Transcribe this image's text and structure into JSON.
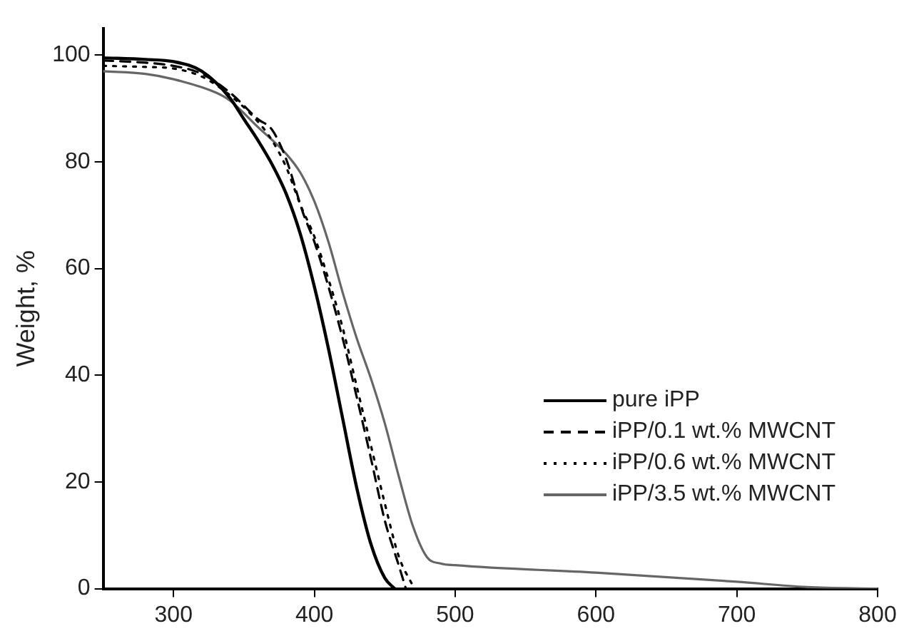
{
  "chart_data": {
    "type": "line",
    "ylabel": "Weight, %",
    "xlim": [
      250,
      800
    ],
    "xticks": [
      300,
      400,
      500,
      600,
      700,
      800
    ],
    "ylim": [
      0,
      105
    ],
    "yticks": [
      0,
      20,
      40,
      60,
      80,
      100
    ],
    "grid": false,
    "legend": "bottom right",
    "marker": "none",
    "series": [
      {
        "name": "pure iPP",
        "color": "#000000",
        "line_style": "solid",
        "x": [
          250,
          280,
          300,
          320,
          340,
          350,
          360,
          370,
          380,
          390,
          400,
          410,
          420,
          430,
          440,
          450,
          457
        ],
        "values": [
          99.5,
          99.2,
          98.8,
          97,
          92,
          88,
          84,
          79.5,
          74,
          66.5,
          56.6,
          45,
          32,
          19,
          8.5,
          2,
          0
        ]
      },
      {
        "name": "iPP/0.1 wt.% MWCNT",
        "color": "#000000",
        "line_style": "dashed",
        "x": [
          250,
          280,
          300,
          320,
          340,
          360,
          370,
          380,
          392,
          400,
          410,
          420,
          430,
          440,
          450,
          460,
          465
        ],
        "values": [
          99,
          98.6,
          98,
          96.5,
          93,
          88,
          86,
          80.5,
          70.4,
          65,
          56.6,
          47,
          36,
          24.6,
          12.8,
          4.3,
          0
        ]
      },
      {
        "name": "iPP/0.6 wt.% MWCNT",
        "color": "#000000",
        "line_style": "dotted",
        "x": [
          250,
          280,
          300,
          320,
          340,
          360,
          370,
          380,
          390,
          400,
          410,
          420,
          430,
          440,
          450,
          460,
          470
        ],
        "values": [
          98,
          97.8,
          97.5,
          96,
          92.5,
          87.5,
          84,
          79,
          72,
          66,
          58,
          49,
          38,
          27,
          16,
          6,
          0.5
        ]
      },
      {
        "name": "iPP/3.5 wt.% MWCNT",
        "color": "#666666",
        "line_style": "solid",
        "x": [
          250,
          280,
          300,
          330,
          340,
          360,
          380,
          390,
          400,
          410,
          420,
          430,
          440,
          450,
          460,
          470,
          480,
          490,
          500,
          600,
          700,
          750,
          800
        ],
        "values": [
          97,
          96.5,
          95.5,
          93,
          91.5,
          86.5,
          81.5,
          78,
          72.6,
          65,
          55.6,
          47,
          39.5,
          31,
          21,
          11.7,
          5.9,
          4.7,
          4.4,
          3,
          1.3,
          0.3,
          0
        ]
      }
    ]
  }
}
